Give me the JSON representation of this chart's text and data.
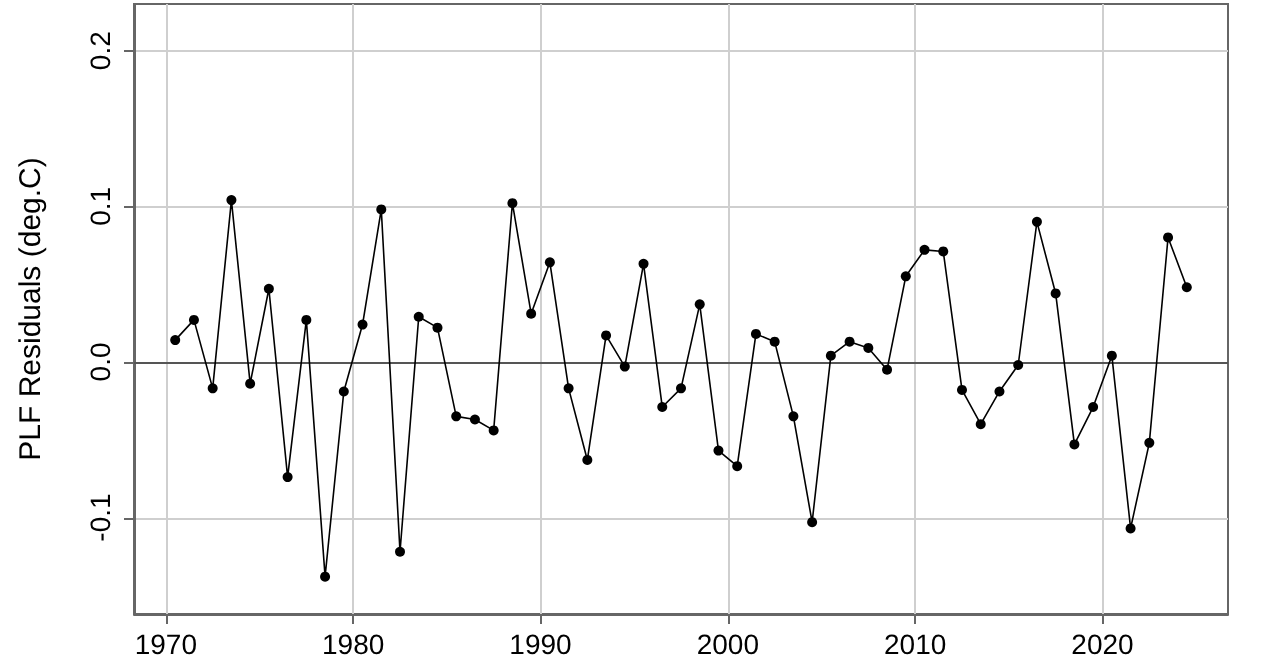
{
  "chart_data": {
    "type": "line",
    "ylabel": "PLF Residuals (deg.C)",
    "x": [
      1970.5,
      1971.5,
      1972.5,
      1973.5,
      1974.5,
      1975.5,
      1976.5,
      1977.5,
      1978.5,
      1979.5,
      1980.5,
      1981.5,
      1982.5,
      1983.5,
      1984.5,
      1985.5,
      1986.5,
      1987.5,
      1988.5,
      1989.5,
      1990.5,
      1991.5,
      1992.5,
      1993.5,
      1994.5,
      1995.5,
      1996.5,
      1997.5,
      1998.5,
      1999.5,
      2000.5,
      2001.5,
      2002.5,
      2003.5,
      2004.5,
      2005.5,
      2006.5,
      2007.5,
      2008.5,
      2009.5,
      2010.5,
      2011.5,
      2012.5,
      2013.5,
      2014.5,
      2015.5,
      2016.5,
      2017.5,
      2018.5,
      2019.5,
      2020.5,
      2021.5,
      2022.5,
      2023.5,
      2024.5
    ],
    "series": [
      {
        "color": "#000000",
        "values": [
          0.014,
          0.027,
          -0.017,
          0.104,
          -0.014,
          0.047,
          -0.074,
          0.027,
          -0.138,
          -0.019,
          0.024,
          0.098,
          -0.122,
          0.029,
          0.022,
          -0.035,
          -0.037,
          -0.044,
          0.102,
          0.031,
          0.064,
          -0.017,
          -0.063,
          0.017,
          -0.003,
          0.063,
          -0.029,
          -0.017,
          0.037,
          -0.057,
          -0.067,
          0.018,
          0.013,
          -0.035,
          -0.103,
          0.004,
          0.013,
          0.009,
          -0.005,
          0.055,
          0.072,
          0.071,
          -0.018,
          -0.04,
          -0.019,
          -0.002,
          0.09,
          0.044,
          -0.053,
          -0.029,
          0.004,
          -0.107,
          -0.052,
          0.08,
          0.048
        ]
      }
    ],
    "xlim": [
      1968.3,
      2026.7
    ],
    "xticks": [
      1970,
      1980,
      1990,
      2000,
      2010,
      2020
    ],
    "ylim": [
      -0.162,
      0.23
    ],
    "yticks": [
      -0.1,
      {
        "value": 0,
        "label": "0.0"
      },
      0.1,
      0.2
    ],
    "ref_lines": [
      {
        "axis": "y",
        "value": 0,
        "color": "#555555"
      }
    ],
    "grid": true,
    "marker": "circle",
    "line_style": "solid"
  }
}
